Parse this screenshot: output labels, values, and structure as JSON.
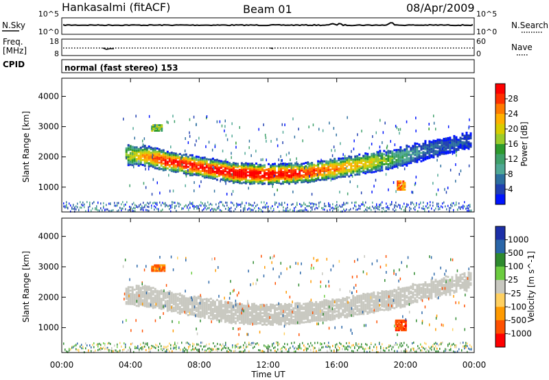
{
  "header": {
    "station": "Hankasalmi (fitACF)",
    "beam": "Beam 01",
    "date": "08/Apr/2009"
  },
  "top_panel": {
    "left_label": "N.Sky",
    "right_label": "N.Search",
    "left_ticks": [
      "10^5",
      "10^0"
    ],
    "right_ticks": [
      "10^5",
      "10^0"
    ]
  },
  "freq_panel": {
    "left_label_1": "Freq.",
    "left_label_2": "[MHz]",
    "right_label": "Nave",
    "left_ticks": [
      "18",
      "8"
    ],
    "right_ticks": [
      "60",
      "0"
    ]
  },
  "cpid": {
    "label": "CPID",
    "value": "normal (fast stereo) 153"
  },
  "power_colorbar": {
    "title": "Power [dB]",
    "ticks": [
      "28",
      "24",
      "20",
      "16",
      "12",
      "8",
      "4"
    ],
    "colors": [
      "#ff0000",
      "#ff3000",
      "#ff7a00",
      "#ffb000",
      "#d8cc00",
      "#9ccc2a",
      "#2d9a2d",
      "#3ea06a",
      "#4fa895",
      "#2d6f9e",
      "#2040b0",
      "#0014ff"
    ]
  },
  "velocity_colorbar": {
    "title": "Velocity [m s^-1]",
    "ticks": [
      "1000",
      "500",
      "100",
      "25",
      "-25",
      "-100",
      "-500",
      "-1000"
    ],
    "colors": [
      "#1c2fa8",
      "#2a66a8",
      "#2e8a2e",
      "#6ccc40",
      "#c8c8c0",
      "#ffd060",
      "#ff9a00",
      "#ff5000",
      "#ff0000"
    ]
  },
  "axes": {
    "y_label": "Slant Range [km]",
    "x_label": "Time UT",
    "x_ticks": [
      "00:00",
      "04:00",
      "08:00",
      "12:00",
      "16:00",
      "20:00",
      "00:00"
    ],
    "y_ticks": [
      "1000",
      "2000",
      "3000",
      "4000"
    ]
  },
  "chart_data": [
    {
      "type": "heatmap",
      "title": "Beam 01",
      "panel": "power",
      "xlabel": "Time UT",
      "ylabel": "Slant Range [km]",
      "xlim": [
        0,
        24
      ],
      "ylim": [
        180,
        4600
      ],
      "colorbar_label": "Power [dB]",
      "colorbar_range": [
        3,
        30
      ],
      "main_band": {
        "x_hours": [
          3.7,
          5,
          6,
          8,
          10,
          12,
          14,
          16,
          18,
          19.5,
          20.5,
          22,
          23.8
        ],
        "center_km": [
          2100,
          2050,
          1900,
          1700,
          1500,
          1450,
          1500,
          1650,
          1850,
          2000,
          2150,
          2350,
          2600
        ],
        "peak_power_db": [
          18,
          24,
          28,
          28,
          30,
          29,
          28,
          24,
          20,
          14,
          10,
          8,
          6
        ]
      },
      "patches": [
        {
          "x_hours": [
            5.2,
            5.8
          ],
          "range_km": [
            2900,
            3100
          ],
          "power_db": 16
        },
        {
          "x_hours": [
            19.5,
            19.9
          ],
          "range_km": [
            950,
            1250
          ],
          "power_db": 24
        }
      ]
    },
    {
      "type": "heatmap",
      "panel": "velocity",
      "xlabel": "Time UT",
      "ylabel": "Slant Range [km]",
      "xlim": [
        0,
        24
      ],
      "ylim": [
        180,
        4600
      ],
      "colorbar_label": "Velocity [m s^-1]",
      "colorbar_range": [
        -1000,
        1000
      ],
      "main_band_velocity_ms": 0,
      "patches": [
        {
          "x_hours": [
            5.2,
            6.0
          ],
          "range_km": [
            2900,
            3100
          ],
          "velocity_ms": -300
        },
        {
          "x_hours": [
            19.4,
            20.0
          ],
          "range_km": [
            950,
            1300
          ],
          "velocity_ms": -600
        }
      ]
    }
  ]
}
